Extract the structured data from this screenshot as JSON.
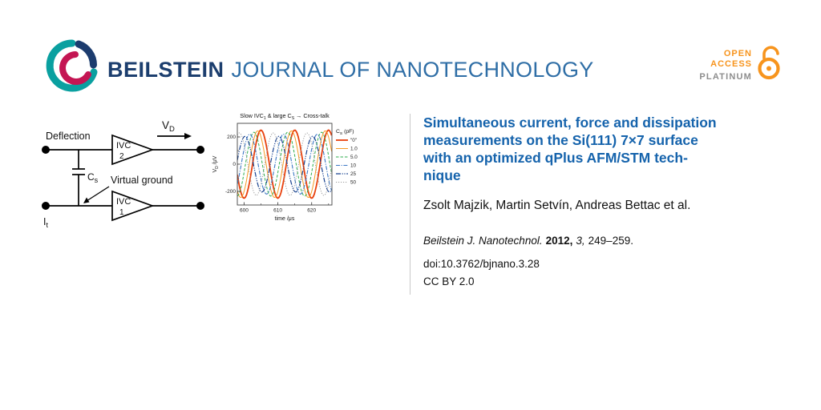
{
  "colors": {
    "beilstein_navy": "#1c3e6e",
    "journal_blue": "#2f6ea6",
    "title_blue": "#1563ac",
    "open_access_orange": "#f7941d",
    "platinum_gray": "#8d8d8d",
    "divider_gray": "#c9c9c9",
    "text_black": "#1a1a1a"
  },
  "header": {
    "brand": "BEILSTEIN",
    "journal": "JOURNAL OF NANOTECHNOLOGY",
    "open_access": {
      "line1": "OPEN",
      "line2": "ACCESS",
      "line3": "PLATINUM"
    }
  },
  "diagram": {
    "labels": {
      "deflection": "Deflection",
      "vd_main": "V",
      "vd_sub": "D",
      "ivc": "IVC",
      "ivc2_num": "2",
      "ivc1_num": "1",
      "cs_main": "C",
      "cs_sub": "s",
      "virtual_ground": "Virtual ground",
      "it_main": "I",
      "it_sub": "t"
    }
  },
  "chart_data": {
    "type": "line",
    "title_parts": [
      {
        "t": "Slow IVC"
      },
      {
        "t": "1",
        "sub": true
      },
      {
        "t": " & large C"
      },
      {
        "t": "S",
        "sub": true
      },
      {
        "t": " → Cross-talk"
      }
    ],
    "xlabel": "time /μs",
    "ylabel_parts": [
      {
        "t": "V"
      },
      {
        "t": "D",
        "sub": true
      },
      {
        "t": " /μV"
      }
    ],
    "legend_title_parts": [
      {
        "t": "C"
      },
      {
        "t": "S",
        "sub": true
      },
      {
        "t": " (pF)"
      }
    ],
    "x_range": [
      598,
      626
    ],
    "y_range": [
      -300,
      300
    ],
    "x_ticks": [
      600,
      610,
      620
    ],
    "x_minor_step": 5,
    "y_ticks": [
      200,
      0,
      -200
    ],
    "y_minor_step": 100,
    "waveform": "sine",
    "period_us": 10,
    "series": [
      {
        "name": "\"0\"",
        "color": "#e8400c",
        "dash": "",
        "width": 1.8,
        "amplitude_uV": 250,
        "phase_deg": -90
      },
      {
        "name": "1.0",
        "color": "#f59a23",
        "dash": "",
        "width": 1.0,
        "amplitude_uV": 245,
        "phase_deg": -55
      },
      {
        "name": "5.0",
        "color": "#2fae4e",
        "dash": "3.5,2",
        "width": 1.0,
        "amplitude_uV": 235,
        "phase_deg": -15
      },
      {
        "name": "10",
        "color": "#3b77c4",
        "dash": "5,1.6,1.2,1.6",
        "width": 1.1,
        "amplitude_uV": 220,
        "phase_deg": 30
      },
      {
        "name": "25",
        "color": "#17418f",
        "dash": "6,1.6,1.2,1.6,1.2,1.6",
        "width": 1.2,
        "amplitude_uV": 205,
        "phase_deg": 80
      },
      {
        "name": "50",
        "color": "#9b9b9b",
        "dash": "1.2,1.8",
        "width": 1.0,
        "amplitude_uV": 230,
        "phase_deg": 140
      }
    ]
  },
  "article": {
    "title_lines": [
      "Simultaneous current, force and dissipation",
      "measurements on the Si(111) 7×7 surface",
      "with an optimized qPlus AFM/STM tech-",
      "nique"
    ],
    "authors": "Zsolt Majzik, Martin Setvín, Andreas Bettac et al.",
    "citation": {
      "journal": "Beilstein J. Nanotechnol.",
      "year": "2012,",
      "volume": "3,",
      "pages": "249–259."
    },
    "doi": "doi:10.3762/bjnano.3.28",
    "license": "CC BY 2.0"
  }
}
